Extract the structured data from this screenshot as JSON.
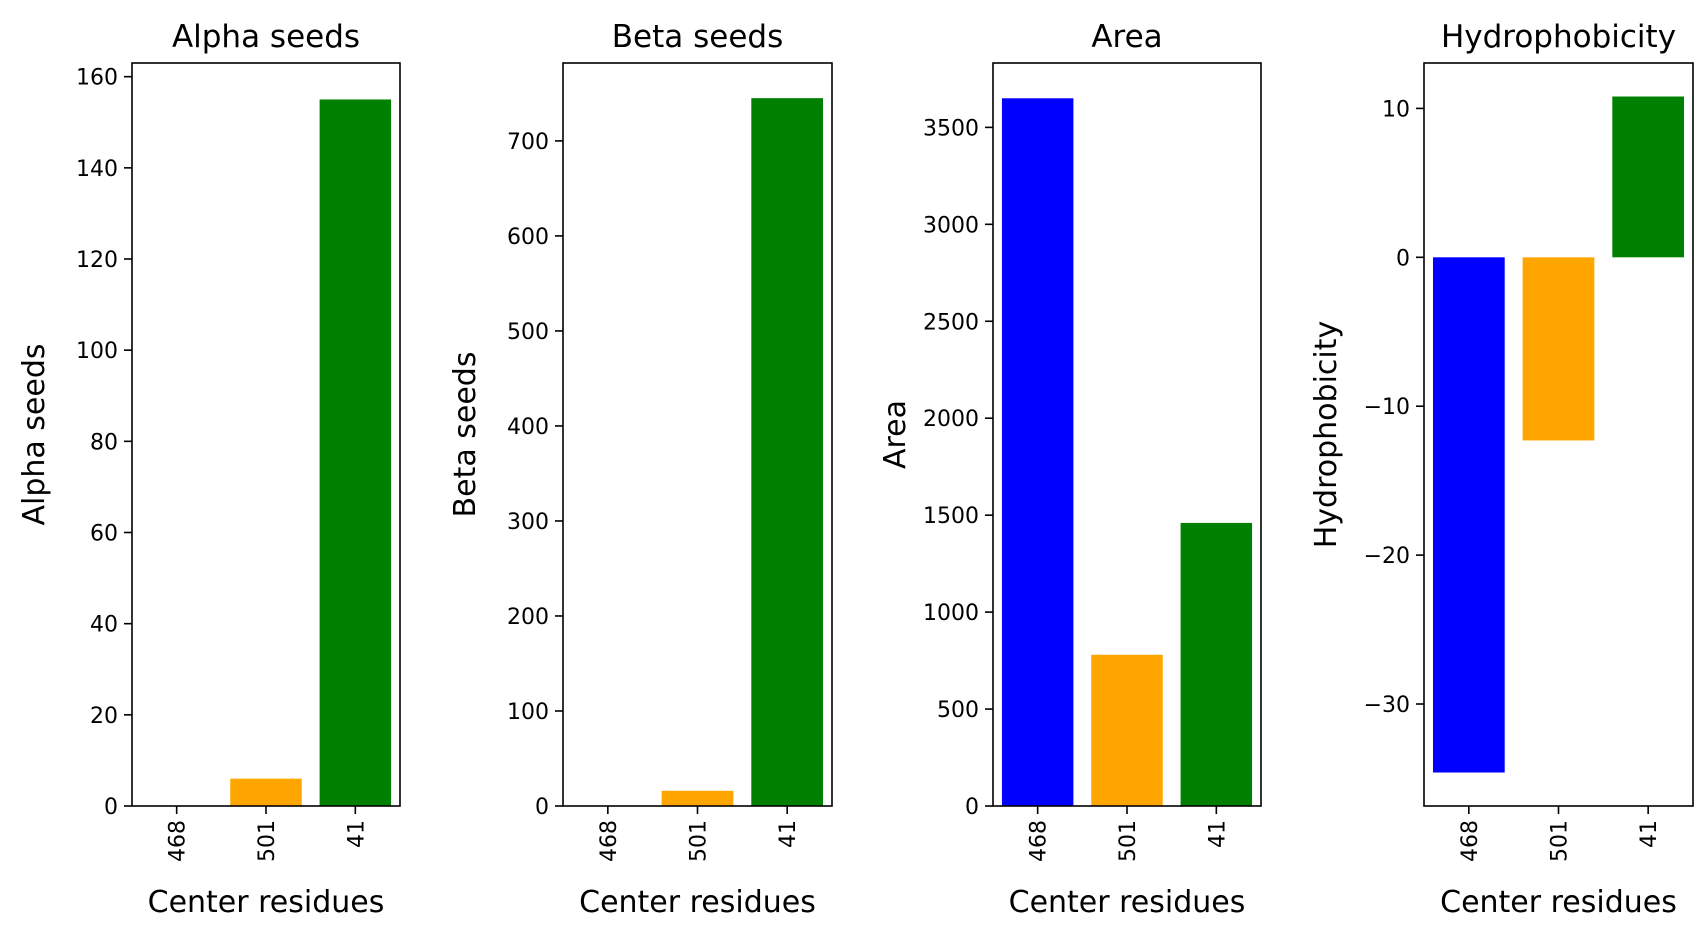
{
  "figure": {
    "background": "#ffffff"
  },
  "colors": {
    "468": "#0000ff",
    "501": "#ffa500",
    "41": "#008000"
  },
  "chart_data": [
    {
      "type": "bar",
      "title": "Alpha seeds",
      "xlabel": "Center residues",
      "ylabel": "Alpha seeds",
      "categories": [
        "468",
        "501",
        "41"
      ],
      "values": [
        0,
        6,
        155
      ],
      "colors": [
        "#0000ff",
        "#ffa500",
        "#008000"
      ],
      "ylim": [
        0,
        163
      ],
      "yticks": [
        0,
        20,
        40,
        60,
        80,
        100,
        120,
        140,
        160
      ],
      "grid": false,
      "legend": false
    },
    {
      "type": "bar",
      "title": "Beta seeds",
      "xlabel": "Center residues",
      "ylabel": "Beta seeds",
      "categories": [
        "468",
        "501",
        "41"
      ],
      "values": [
        0,
        16,
        745
      ],
      "colors": [
        "#0000ff",
        "#ffa500",
        "#008000"
      ],
      "ylim": [
        0,
        782
      ],
      "yticks": [
        0,
        100,
        200,
        300,
        400,
        500,
        600,
        700
      ],
      "grid": false,
      "legend": false
    },
    {
      "type": "bar",
      "title": "Area",
      "xlabel": "Center residues",
      "ylabel": "Area",
      "categories": [
        "468",
        "501",
        "41"
      ],
      "values": [
        3650,
        780,
        1460
      ],
      "colors": [
        "#0000ff",
        "#ffa500",
        "#008000"
      ],
      "ylim": [
        0,
        3832
      ],
      "yticks": [
        0,
        500,
        1000,
        1500,
        2000,
        2500,
        3000,
        3500
      ],
      "grid": false,
      "legend": false
    },
    {
      "type": "bar",
      "title": "Hydrophobicity",
      "xlabel": "Center residues",
      "ylabel": "Hydrophobicity",
      "categories": [
        "468",
        "501",
        "41"
      ],
      "values": [
        -34.6,
        -12.3,
        10.8
      ],
      "colors": [
        "#0000ff",
        "#ffa500",
        "#008000"
      ],
      "ylim": [
        -36.85,
        13.05
      ],
      "yticks": [
        -30,
        -20,
        -10,
        0,
        10
      ],
      "ytick_labels": [
        "−30",
        "−20",
        "−10",
        "0",
        "10"
      ],
      "grid": false,
      "legend": false
    }
  ]
}
